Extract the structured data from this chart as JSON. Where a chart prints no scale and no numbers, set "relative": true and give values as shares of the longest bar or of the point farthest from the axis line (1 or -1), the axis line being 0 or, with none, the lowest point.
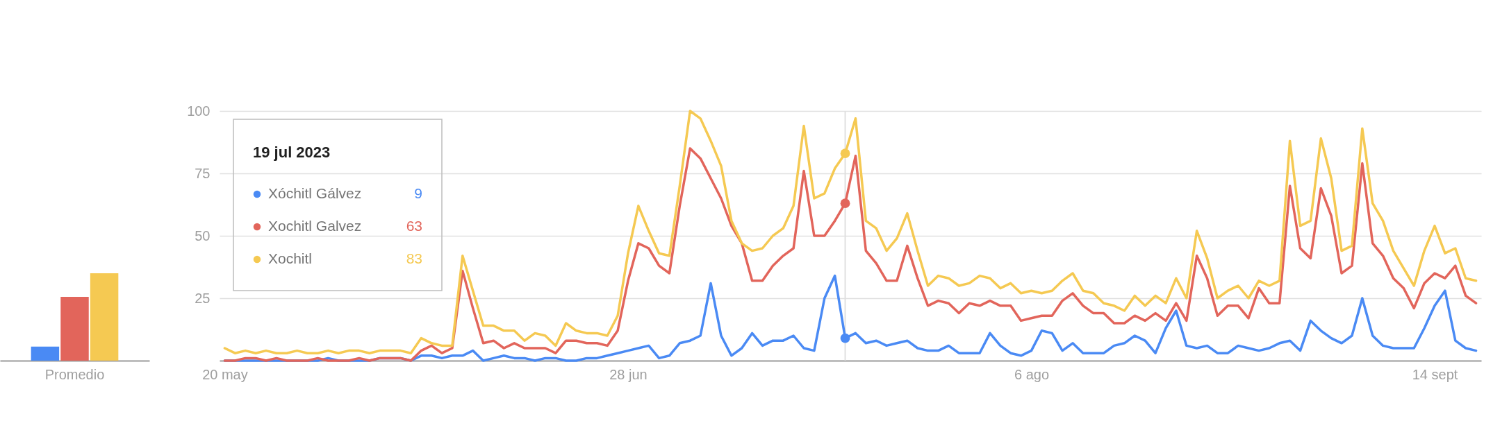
{
  "chart_data": [
    {
      "type": "bar",
      "categories": [
        "Promedio"
      ],
      "relative": true,
      "tick_labels": "x",
      "series": [
        {
          "color": "#4a8af4",
          "values": [
            0.16
          ]
        },
        {
          "color": "#e2655b",
          "values": [
            0.73
          ]
        },
        {
          "color": "#f5c952",
          "values": [
            1
          ]
        }
      ]
    },
    {
      "type": "line",
      "grid": "y",
      "legend": "top left",
      "legend_title": "19 jul 2023",
      "annotations": [
        "9",
        "63",
        "83"
      ],
      "xlim": [
        "2023-05-19T12:00",
        "2023-09-18T12:00"
      ],
      "xticks": [
        {
          "value": "2023-05-20",
          "label": "20 may"
        },
        {
          "value": "2023-06-28",
          "label": "28 jun"
        },
        {
          "value": "2023-08-06",
          "label": "6 ago"
        },
        {
          "value": "2023-09-14",
          "label": "14 sept"
        }
      ],
      "ylim": [
        0,
        100
      ],
      "yticks": [
        25,
        50,
        75,
        100
      ],
      "ref_lines": [
        {
          "axis": "x",
          "value": "2023-07-19",
          "color": "#e0e0e0"
        }
      ],
      "x": [
        "2023-05-20",
        "2023-05-21",
        "2023-05-22",
        "2023-05-23",
        "2023-05-24",
        "2023-05-25",
        "2023-05-26",
        "2023-05-27",
        "2023-05-28",
        "2023-05-29",
        "2023-05-30",
        "2023-05-31",
        "2023-06-01",
        "2023-06-02",
        "2023-06-03",
        "2023-06-04",
        "2023-06-05",
        "2023-06-06",
        "2023-06-07",
        "2023-06-08",
        "2023-06-09",
        "2023-06-10",
        "2023-06-11",
        "2023-06-12",
        "2023-06-13",
        "2023-06-14",
        "2023-06-15",
        "2023-06-16",
        "2023-06-17",
        "2023-06-18",
        "2023-06-19",
        "2023-06-20",
        "2023-06-21",
        "2023-06-22",
        "2023-06-23",
        "2023-06-24",
        "2023-06-25",
        "2023-06-26",
        "2023-06-27",
        "2023-06-28",
        "2023-06-29",
        "2023-06-30",
        "2023-07-01",
        "2023-07-02",
        "2023-07-03",
        "2023-07-04",
        "2023-07-05",
        "2023-07-06",
        "2023-07-07",
        "2023-07-08",
        "2023-07-09",
        "2023-07-10",
        "2023-07-11",
        "2023-07-12",
        "2023-07-13",
        "2023-07-14",
        "2023-07-15",
        "2023-07-16",
        "2023-07-17",
        "2023-07-18",
        "2023-07-19",
        "2023-07-20",
        "2023-07-21",
        "2023-07-22",
        "2023-07-23",
        "2023-07-24",
        "2023-07-25",
        "2023-07-26",
        "2023-07-27",
        "2023-07-28",
        "2023-07-29",
        "2023-07-30",
        "2023-07-31",
        "2023-08-01",
        "2023-08-02",
        "2023-08-03",
        "2023-08-04",
        "2023-08-05",
        "2023-08-06",
        "2023-08-07",
        "2023-08-08",
        "2023-08-09",
        "2023-08-10",
        "2023-08-11",
        "2023-08-12",
        "2023-08-13",
        "2023-08-14",
        "2023-08-15",
        "2023-08-16",
        "2023-08-17",
        "2023-08-18",
        "2023-08-19",
        "2023-08-20",
        "2023-08-21",
        "2023-08-22",
        "2023-08-23",
        "2023-08-24",
        "2023-08-25",
        "2023-08-26",
        "2023-08-27",
        "2023-08-28",
        "2023-08-29",
        "2023-08-30",
        "2023-08-31",
        "2023-09-01",
        "2023-09-02",
        "2023-09-03",
        "2023-09-04",
        "2023-09-05",
        "2023-09-06",
        "2023-09-07",
        "2023-09-08",
        "2023-09-09",
        "2023-09-10",
        "2023-09-11",
        "2023-09-12",
        "2023-09-13",
        "2023-09-14",
        "2023-09-15",
        "2023-09-16",
        "2023-09-17",
        "2023-09-18"
      ],
      "series": [
        {
          "name": "Xóchitl Gálvez",
          "color": "#4a8af4",
          "values": [
            0,
            0,
            0,
            0,
            0,
            0,
            0,
            0,
            0,
            0,
            1,
            0,
            0,
            0,
            0,
            1,
            1,
            1,
            0,
            2,
            2,
            1,
            2,
            2,
            4,
            0,
            1,
            2,
            1,
            1,
            0,
            1,
            1,
            0,
            0,
            1,
            1,
            2,
            3,
            4,
            5,
            6,
            1,
            2,
            7,
            8,
            10,
            31,
            10,
            2,
            5,
            11,
            6,
            8,
            8,
            10,
            5,
            4,
            25,
            34,
            9,
            11,
            7,
            8,
            6,
            7,
            8,
            5,
            4,
            4,
            6,
            3,
            3,
            3,
            11,
            6,
            3,
            2,
            4,
            12,
            11,
            4,
            7,
            3,
            3,
            3,
            6,
            7,
            10,
            8,
            3,
            13,
            20,
            6,
            5,
            6,
            3,
            3,
            6,
            5,
            4,
            5,
            7,
            8,
            4,
            16,
            12,
            9,
            7,
            10,
            25,
            10,
            6,
            5,
            5,
            5,
            13,
            22,
            28,
            8,
            5,
            4
          ]
        },
        {
          "name": "Xochitl Galvez",
          "color": "#e2655b",
          "values": [
            0,
            0,
            1,
            1,
            0,
            1,
            0,
            0,
            0,
            1,
            0,
            0,
            0,
            1,
            0,
            1,
            1,
            1,
            0,
            4,
            6,
            3,
            5,
            36,
            21,
            7,
            8,
            5,
            7,
            5,
            5,
            5,
            3,
            8,
            8,
            7,
            7,
            6,
            12,
            32,
            47,
            45,
            38,
            35,
            62,
            85,
            81,
            73,
            65,
            54,
            47,
            32,
            32,
            38,
            42,
            45,
            76,
            50,
            50,
            56,
            63,
            82,
            44,
            39,
            32,
            32,
            46,
            33,
            22,
            24,
            23,
            19,
            23,
            22,
            24,
            22,
            22,
            16,
            17,
            18,
            18,
            24,
            27,
            22,
            19,
            19,
            15,
            15,
            18,
            16,
            19,
            16,
            23,
            16,
            42,
            33,
            18,
            22,
            22,
            17,
            29,
            23,
            23,
            70,
            45,
            41,
            69,
            58,
            35,
            38,
            79,
            47,
            42,
            33,
            29,
            21,
            31,
            35,
            33,
            38,
            26,
            23
          ]
        },
        {
          "name": "Xochitl",
          "color": "#f5c952",
          "values": [
            5,
            3,
            4,
            3,
            4,
            3,
            3,
            4,
            3,
            3,
            4,
            3,
            4,
            4,
            3,
            4,
            4,
            4,
            3,
            9,
            7,
            6,
            6,
            42,
            28,
            14,
            14,
            12,
            12,
            8,
            11,
            10,
            6,
            15,
            12,
            11,
            11,
            10,
            18,
            43,
            62,
            52,
            43,
            42,
            70,
            100,
            97,
            88,
            78,
            56,
            47,
            44,
            45,
            50,
            53,
            62,
            94,
            65,
            67,
            77,
            83,
            97,
            56,
            53,
            44,
            49,
            59,
            44,
            30,
            34,
            33,
            30,
            31,
            34,
            33,
            29,
            31,
            27,
            28,
            27,
            28,
            32,
            35,
            28,
            27,
            23,
            22,
            20,
            26,
            22,
            26,
            23,
            33,
            25,
            52,
            41,
            25,
            28,
            30,
            25,
            32,
            30,
            32,
            88,
            54,
            56,
            89,
            73,
            44,
            46,
            93,
            63,
            56,
            44,
            37,
            30,
            44,
            54,
            43,
            45,
            33,
            32
          ]
        }
      ]
    }
  ]
}
